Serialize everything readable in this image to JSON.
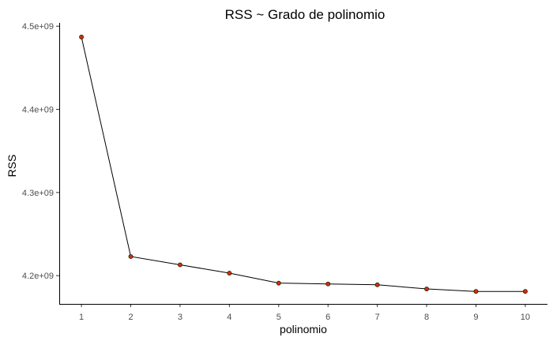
{
  "chart_data": {
    "type": "line",
    "title": "RSS  ~ Grado de polinomio",
    "xlabel": "polinomio",
    "ylabel": "RSS",
    "x": [
      1,
      2,
      3,
      4,
      5,
      6,
      7,
      8,
      9,
      10
    ],
    "x_tick_labels": [
      "1",
      "2",
      "3",
      "4",
      "5",
      "6",
      "7",
      "8",
      "9",
      "10"
    ],
    "y_ticks": [
      4200000000,
      4300000000,
      4400000000,
      4500000000
    ],
    "y_tick_labels": [
      "4.2e+09",
      "4.3e+09",
      "4.4e+09",
      "4.5e+09"
    ],
    "xlim": [
      0.55,
      10.45
    ],
    "ylim": [
      4166000000,
      4504000000
    ],
    "series": [
      {
        "values": [
          4487000000,
          4223000000,
          4213000000,
          4203000000,
          4191000000,
          4190000000,
          4189000000,
          4184000000,
          4181000000,
          4181000000
        ],
        "line_color": "#000000",
        "point_color": "#cc3300"
      }
    ],
    "grid": false,
    "legend": "none"
  }
}
